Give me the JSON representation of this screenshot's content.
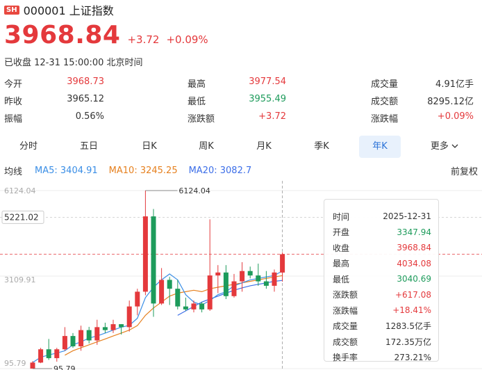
{
  "header": {
    "exchange": "SH",
    "code_name": "000001 上证指数"
  },
  "quote": {
    "price": "3968.84",
    "change": "+3.72",
    "change_pct": "+0.09%",
    "status": "已收盘 12-31 15:00:00 北京时间"
  },
  "stats": [
    [
      {
        "label": "今开",
        "value": "3968.73",
        "color": "#e4393c"
      },
      {
        "label": "最高",
        "value": "3977.54",
        "color": "#e4393c"
      },
      {
        "label": "成交量",
        "value": "4.91亿手",
        "color": "#333333"
      }
    ],
    [
      {
        "label": "昨收",
        "value": "3965.12",
        "color": "#333333"
      },
      {
        "label": "最低",
        "value": "3955.49",
        "color": "#1d9b5b"
      },
      {
        "label": "成交额",
        "value": "8295.12亿",
        "color": "#333333"
      }
    ],
    [
      {
        "label": "振幅",
        "value": "0.56%",
        "color": "#333333"
      },
      {
        "label": "涨跌额",
        "value": "+3.72",
        "color": "#e4393c"
      },
      {
        "label": "涨跌幅",
        "value": "+0.09%",
        "color": "#e4393c"
      }
    ]
  ],
  "tabs": [
    "分时",
    "五日",
    "日K",
    "周K",
    "月K",
    "季K",
    "年K",
    "更多"
  ],
  "active_tab": "年K",
  "ma": {
    "title": "均线",
    "ma5": "MA5: 3404.91",
    "ma10": "MA10: 3245.25",
    "ma20": "MA20: 3082.7",
    "fq": "前复权"
  },
  "colors": {
    "up": "#e4393c",
    "down": "#1d9b5b",
    "ma5": "#3a8ee6",
    "ma10": "#e6801f",
    "ma20": "#3c6ee8",
    "active_tab": "#2a72d8"
  },
  "chart_data": {
    "type": "candlestick",
    "y_ticks": [
      "6124.04",
      "5221.02",
      "3109.91"
    ],
    "high_label": "6124.04",
    "low_label": "95.79",
    "bottom_label": "95.79",
    "candles": [
      {
        "o": 96,
        "c": 300,
        "h": 350,
        "l": 95.79
      },
      {
        "o": 300,
        "c": 750,
        "h": 800,
        "l": 280
      },
      {
        "o": 750,
        "c": 450,
        "h": 1100,
        "l": 390
      },
      {
        "o": 450,
        "c": 750,
        "h": 800,
        "l": 330
      },
      {
        "o": 750,
        "c": 1200,
        "h": 1500,
        "l": 700
      },
      {
        "o": 1200,
        "c": 850,
        "h": 1300,
        "l": 800
      },
      {
        "o": 850,
        "c": 1400,
        "h": 1550,
        "l": 700
      },
      {
        "o": 1400,
        "c": 1050,
        "h": 1510,
        "l": 950
      },
      {
        "o": 1050,
        "c": 1500,
        "h": 1750,
        "l": 900
      },
      {
        "o": 1500,
        "c": 1400,
        "h": 1650,
        "l": 1300
      },
      {
        "o": 1400,
        "c": 1600,
        "h": 1750,
        "l": 1300
      },
      {
        "o": 1600,
        "c": 1500,
        "h": 1600,
        "l": 1250
      },
      {
        "o": 1500,
        "c": 2200,
        "h": 2400,
        "l": 1350
      },
      {
        "o": 2200,
        "c": 2700,
        "h": 2800,
        "l": 1900
      },
      {
        "o": 2700,
        "c": 5250,
        "h": 6124.04,
        "l": 2580
      },
      {
        "o": 5250,
        "c": 2300,
        "h": 5500,
        "l": 1850
      },
      {
        "o": 2300,
        "c": 3100,
        "h": 3500,
        "l": 2250
      },
      {
        "o": 3100,
        "c": 2800,
        "h": 3200,
        "l": 2250
      },
      {
        "o": 2800,
        "c": 2200,
        "h": 3100,
        "l": 2100
      },
      {
        "o": 2200,
        "c": 2100,
        "h": 2500,
        "l": 2050
      },
      {
        "o": 2100,
        "c": 2300,
        "h": 2400,
        "l": 2000
      },
      {
        "o": 2300,
        "c": 2100,
        "h": 2350,
        "l": 2000
      },
      {
        "o": 2100,
        "c": 3250,
        "h": 5150,
        "l": 2050
      },
      {
        "o": 3250,
        "c": 3350,
        "h": 3600,
        "l": 2650
      },
      {
        "o": 3350,
        "c": 2550,
        "h": 3600,
        "l": 2450
      },
      {
        "o": 2550,
        "c": 3050,
        "h": 3300,
        "l": 2500
      },
      {
        "o": 3050,
        "c": 3400,
        "h": 3700,
        "l": 2700
      },
      {
        "o": 3400,
        "c": 3250,
        "h": 3550,
        "l": 3150
      },
      {
        "o": 3250,
        "c": 3050,
        "h": 3650,
        "l": 2900
      },
      {
        "o": 3050,
        "c": 2900,
        "h": 3400,
        "l": 2800
      },
      {
        "o": 2900,
        "c": 3350,
        "h": 3450,
        "l": 2700
      },
      {
        "o": 3347.94,
        "c": 3968.84,
        "h": 4034.08,
        "l": 3040.69
      }
    ],
    "ma5": [
      300,
      480,
      560,
      620,
      700,
      900,
      1000,
      1130,
      1200,
      1300,
      1400,
      1500,
      1560,
      1800,
      2500,
      2850,
      3100,
      3300,
      3100,
      2600,
      2350,
      2250,
      2400,
      2600,
      2700,
      2900,
      3000,
      3100,
      3150,
      3200,
      3250,
      3404.91
    ],
    "ma10": [
      null,
      null,
      null,
      null,
      550,
      700,
      800,
      900,
      1000,
      1100,
      1200,
      1300,
      1400,
      1550,
      1900,
      2150,
      2350,
      2550,
      2650,
      2700,
      2750,
      2700,
      2800,
      2850,
      2900,
      2950,
      3000,
      3050,
      3100,
      3150,
      3200,
      3245.25
    ],
    "ma20": [
      null,
      null,
      null,
      null,
      null,
      null,
      null,
      null,
      null,
      null,
      null,
      null,
      null,
      null,
      null,
      null,
      null,
      null,
      1900,
      2050,
      2200,
      2350,
      2450,
      2550,
      2650,
      2750,
      2830,
      2900,
      2950,
      3000,
      3050,
      3082.7
    ]
  },
  "tooltip": [
    {
      "label": "时间",
      "value": "2025-12-31",
      "color": "#333333"
    },
    {
      "label": "开盘",
      "value": "3347.94",
      "color": "#1d9b5b"
    },
    {
      "label": "收盘",
      "value": "3968.84",
      "color": "#e4393c"
    },
    {
      "label": "最高",
      "value": "4034.08",
      "color": "#e4393c"
    },
    {
      "label": "最低",
      "value": "3040.69",
      "color": "#1d9b5b"
    },
    {
      "label": "涨跌额",
      "value": "+617.08",
      "color": "#e4393c"
    },
    {
      "label": "涨跌幅",
      "value": "+18.41%",
      "color": "#e4393c"
    },
    {
      "label": "成交量",
      "value": "1283.5亿手",
      "color": "#333333"
    },
    {
      "label": "成交额",
      "value": "172.35万亿",
      "color": "#333333"
    },
    {
      "label": "换手率",
      "value": "273.21%",
      "color": "#333333"
    }
  ]
}
